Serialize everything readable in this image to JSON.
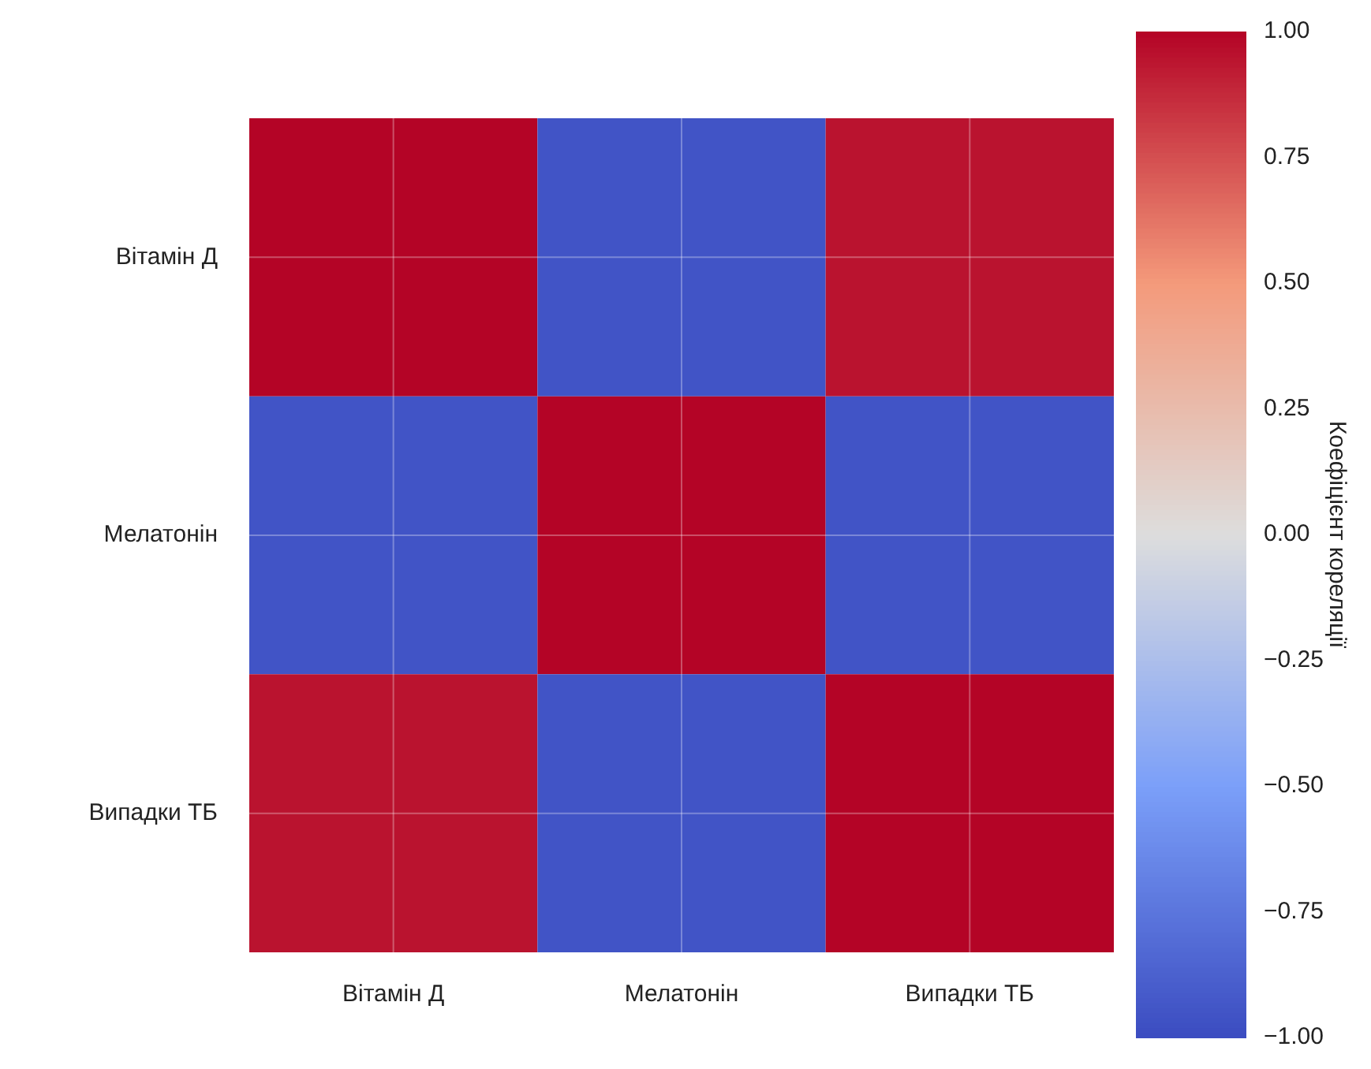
{
  "chart_data": {
    "type": "heatmap",
    "categories": [
      "Вітамін Д",
      "Мелатонін",
      "Випадки ТБ"
    ],
    "y_categories": [
      "Вітамін Д",
      "Мелатонін",
      "Випадки ТБ"
    ],
    "cells": [
      [
        1.0,
        -0.95,
        0.95
      ],
      [
        -0.95,
        1.0,
        -0.95
      ],
      [
        0.95,
        -0.95,
        1.0
      ]
    ],
    "clim": [
      -1,
      1
    ],
    "cticks": [
      {
        "value": -1,
        "label": "−1.00"
      },
      {
        "value": -0.75,
        "label": "−0.75"
      },
      {
        "value": -0.5,
        "label": "−0.50"
      },
      {
        "value": -0.25,
        "label": "−0.25"
      },
      {
        "value": 0,
        "label": "0.00"
      },
      {
        "value": 0.25,
        "label": "0.25"
      },
      {
        "value": 0.5,
        "label": "0.50"
      },
      {
        "value": 0.75,
        "label": "0.75"
      },
      {
        "value": 1,
        "label": "1.00"
      }
    ],
    "clabel": "Коефіцієнт кореляції",
    "grid": true
  }
}
